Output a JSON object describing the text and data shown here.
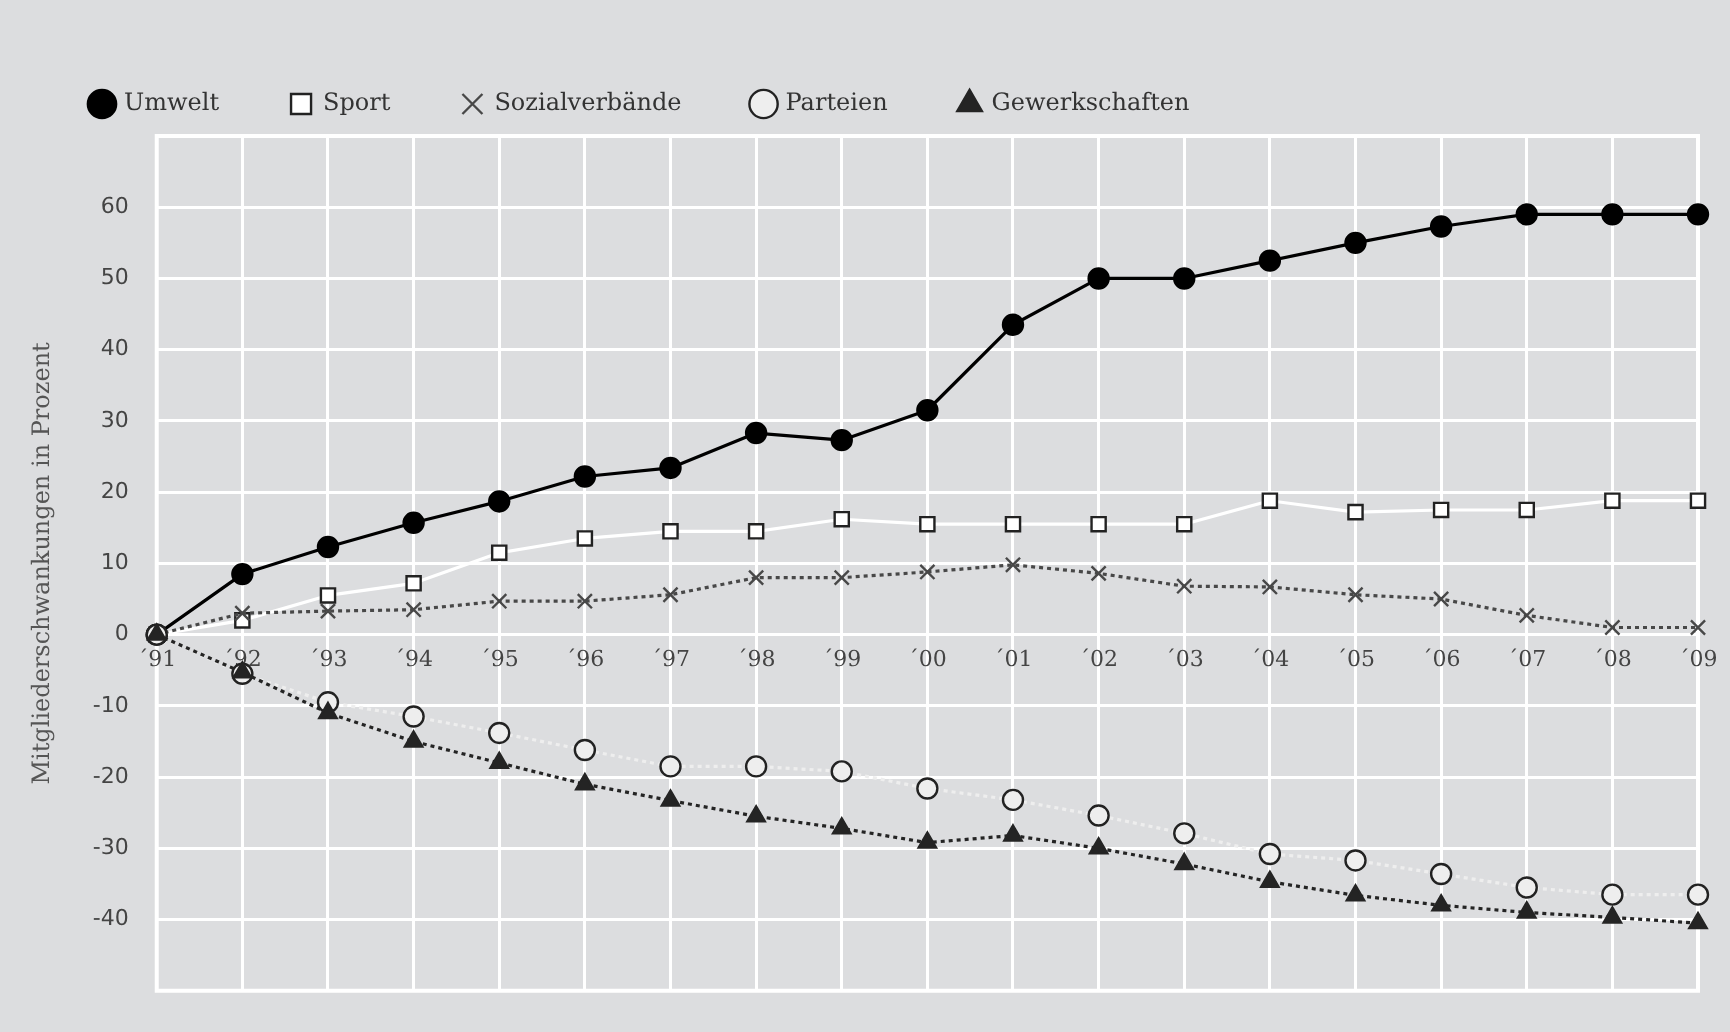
{
  "chart_data": {
    "type": "line",
    "ylabel": "Mitgliederschwankungen in Prozent",
    "categories": [
      "´91",
      "´92",
      "´93",
      "´94",
      "´95",
      "´96",
      "´97",
      "´98",
      "´99",
      "´00",
      "´01",
      "´02",
      "´03",
      "´04",
      "´05",
      "´06",
      "´07",
      "´08",
      "´09"
    ],
    "ylim": [
      -50,
      70
    ],
    "yticks": [
      -40,
      -30,
      -20,
      -10,
      0,
      10,
      20,
      30,
      40,
      50,
      60
    ],
    "grid": true,
    "legend": "top",
    "series": [
      {
        "name": "Umwelt",
        "color": "#000000",
        "marker": "circle",
        "line_style": "solid",
        "values": [
          0,
          8.5,
          12.3,
          15.7,
          18.7,
          22.2,
          23.4,
          28.3,
          27.3,
          31.5,
          43.5,
          50,
          50,
          52.5,
          55,
          57.3,
          59,
          59,
          59
        ]
      },
      {
        "name": "Sport",
        "color": "#ffffff",
        "marker": "square",
        "line_style": "solid",
        "values": [
          0,
          2,
          5.5,
          7.2,
          11.5,
          13.5,
          14.5,
          14.5,
          16.2,
          15.5,
          15.5,
          15.5,
          15.5,
          18.8,
          17.2,
          17.5,
          17.5,
          18.8,
          18.8
        ]
      },
      {
        "name": "Sozialverbände",
        "color": "#484848",
        "marker": "cross",
        "line_style": "dotted",
        "values": [
          0,
          3,
          3.3,
          3.5,
          4.7,
          4.7,
          5.6,
          8,
          8,
          8.8,
          9.8,
          8.6,
          6.8,
          6.7,
          5.6,
          5,
          2.7,
          1,
          1
        ]
      },
      {
        "name": "Parteien",
        "color": "#eeeeee",
        "marker": "circle",
        "line_style": "dotted",
        "values": [
          0,
          -5.5,
          -9.5,
          -11.5,
          -13.8,
          -16.2,
          -18.5,
          -18.5,
          -19.2,
          -21.6,
          -23.2,
          -25.4,
          -27.9,
          -30.8,
          -31.7,
          -33.6,
          -35.5,
          -36.5,
          -36.5
        ]
      },
      {
        "name": "Gewerkschaften",
        "color": "#242424",
        "marker": "triangle",
        "line_style": "dotted",
        "values": [
          0,
          -5.3,
          -11,
          -15,
          -18,
          -21,
          -23.3,
          -25.5,
          -27.2,
          -29.2,
          -28.2,
          -30,
          -32.2,
          -34.7,
          -36.6,
          -38,
          -39,
          -39.7,
          -40.5
        ]
      }
    ]
  }
}
